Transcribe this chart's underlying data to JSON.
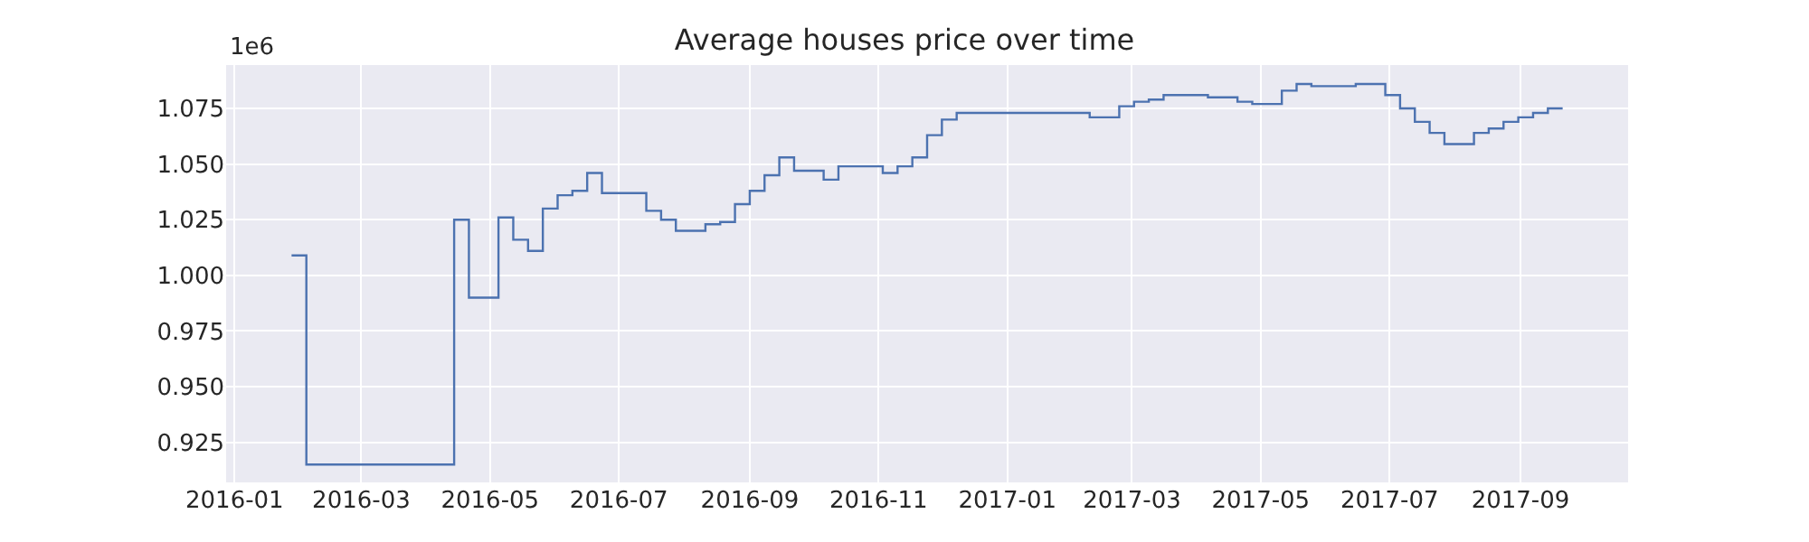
{
  "chart_data": {
    "type": "step",
    "title": "Average houses price over time",
    "annotations": [
      "1e6"
    ],
    "x": [
      "2016-01-28",
      "2016-02-04",
      "2016-04-14",
      "2016-04-21",
      "2016-05-05",
      "2016-05-12",
      "2016-05-19",
      "2016-05-26",
      "2016-06-02",
      "2016-06-09",
      "2016-06-16",
      "2016-06-23",
      "2016-07-14",
      "2016-07-21",
      "2016-07-28",
      "2016-08-11",
      "2016-08-18",
      "2016-08-25",
      "2016-09-01",
      "2016-09-08",
      "2016-09-15",
      "2016-09-22",
      "2016-10-06",
      "2016-10-13",
      "2016-11-03",
      "2016-11-10",
      "2016-11-17",
      "2016-11-24",
      "2016-12-01",
      "2016-12-08",
      "2017-02-09",
      "2017-02-23",
      "2017-03-02",
      "2017-03-09",
      "2017-03-16",
      "2017-04-06",
      "2017-04-20",
      "2017-04-27",
      "2017-05-11",
      "2017-05-18",
      "2017-05-25",
      "2017-06-15",
      "2017-06-29",
      "2017-07-06",
      "2017-07-13",
      "2017-07-20",
      "2017-07-27",
      "2017-08-10",
      "2017-08-17",
      "2017-08-24",
      "2017-08-31",
      "2017-09-07",
      "2017-09-14",
      "2017-09-21"
    ],
    "series": [
      {
        "color": "#4c72b0",
        "values": [
          1.009,
          0.915,
          1.025,
          0.99,
          1.026,
          1.016,
          1.011,
          1.03,
          1.036,
          1.038,
          1.046,
          1.037,
          1.029,
          1.025,
          1.02,
          1.023,
          1.024,
          1.032,
          1.038,
          1.045,
          1.053,
          1.047,
          1.043,
          1.049,
          1.046,
          1.049,
          1.053,
          1.063,
          1.07,
          1.073,
          1.071,
          1.076,
          1.078,
          1.079,
          1.081,
          1.08,
          1.078,
          1.077,
          1.083,
          1.086,
          1.085,
          1.086,
          1.081,
          1.075,
          1.069,
          1.064,
          1.059,
          1.064,
          1.066,
          1.069,
          1.071,
          1.073,
          1.075,
          1.075
        ]
      }
    ],
    "xlim": [
      "2015-12-28",
      "2017-10-22"
    ],
    "xticks": [
      "2016-01",
      "2016-03",
      "2016-05",
      "2016-07",
      "2016-09",
      "2016-11",
      "2017-01",
      "2017-03",
      "2017-05",
      "2017-07",
      "2017-09"
    ],
    "ylim": [
      0.907,
      1.0945
    ],
    "yticks": [
      0.925,
      {
        "value": 0.95,
        "label": "0.950"
      },
      0.975,
      {
        "value": 1,
        "label": "1.000"
      },
      1.025,
      {
        "value": 1.05,
        "label": "1.050"
      },
      1.075
    ],
    "grid": true,
    "legend": false,
    "line_style": "solid",
    "marker": "none"
  }
}
